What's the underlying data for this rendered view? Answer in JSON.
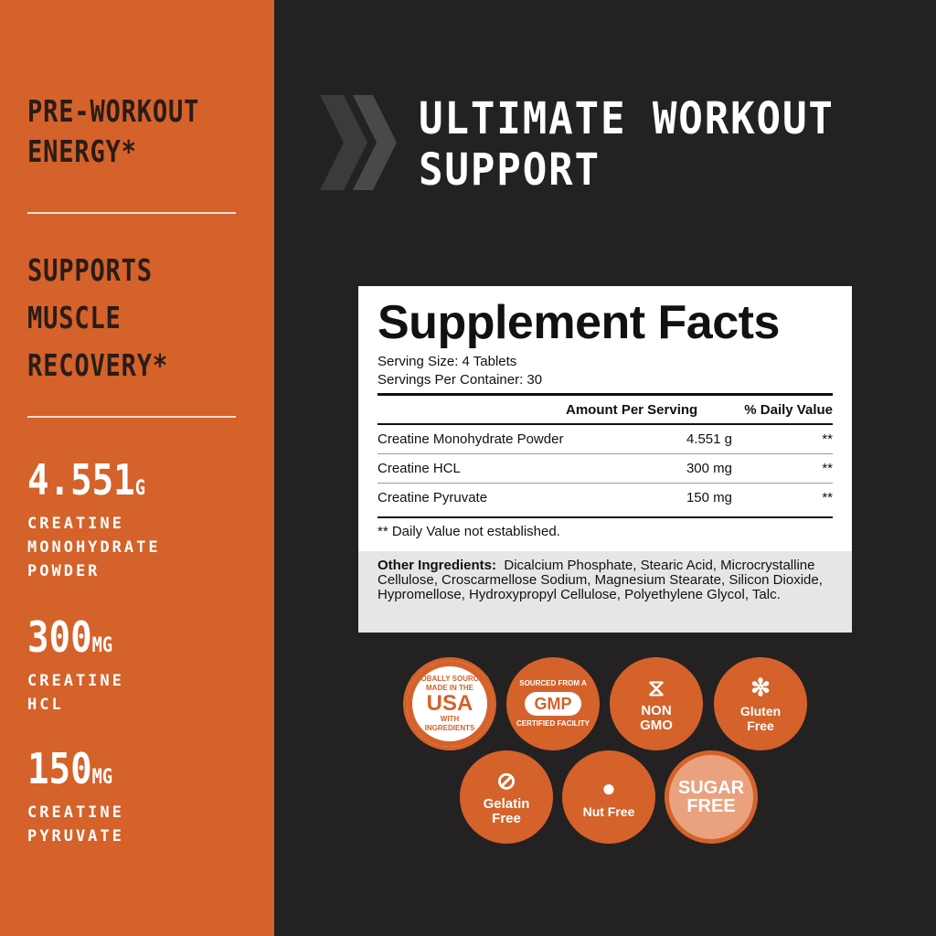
{
  "left": {
    "headline1": [
      "PRE-WORKOUT",
      "ENERGY*"
    ],
    "headline2": [
      "SUPPORTS",
      "MUSCLE",
      "RECOVERY*"
    ],
    "stats": [
      {
        "value": "4.551",
        "unit": "G",
        "label": [
          "CREATINE",
          "MONOHYDRATE",
          "POWDER"
        ]
      },
      {
        "value": "300",
        "unit": "MG",
        "label": [
          "CREATINE",
          "HCL"
        ]
      },
      {
        "value": "150",
        "unit": "MG",
        "label": [
          "CREATINE",
          "PYRUVATE"
        ]
      }
    ]
  },
  "title": [
    "ULTIMATE WORKOUT",
    "SUPPORT"
  ],
  "facts": {
    "heading": "Supplement Facts",
    "serving_size": "Serving Size: 4 Tablets",
    "servings": "Servings Per Container: 30",
    "col_amount": "Amount Per Serving",
    "col_dv": "% Daily Value",
    "rows": [
      {
        "name": "Creatine Monohydrate Powder",
        "amount": "4.551 g",
        "dv": "**"
      },
      {
        "name": "Creatine HCL",
        "amount": "300 mg",
        "dv": "**"
      },
      {
        "name": "Creatine Pyruvate",
        "amount": "150 mg",
        "dv": "**"
      }
    ],
    "footnote": "** Daily Value not established.",
    "other_label": "Other Ingredients:",
    "other_text": "Dicalcium Phosphate, Stearic Acid, Microcrystalline Cellulose, Croscarmellose Sodium, Magnesium Stearate, Silicon Dioxide, Hypromellose, Hydroxypropyl Cellulose, Polyethylene Glycol, Talc."
  },
  "badges": {
    "usa": [
      "GLOBALLY SOURCED",
      "MADE IN THE",
      "USA",
      "WITH",
      "INGREDIENTS"
    ],
    "gmp": [
      "SOURCED FROM A",
      "GMP",
      "CERTIFIED FACILITY"
    ],
    "nongmo": [
      "NON",
      "GMO"
    ],
    "gluten": [
      "Gluten",
      "Free"
    ],
    "gelatin": [
      "Gelatin",
      "Free"
    ],
    "nut": "Nut Free",
    "sugar": [
      "SUGAR",
      "FREE"
    ]
  },
  "colors": {
    "accent": "#d4622a",
    "background": "#242122"
  }
}
